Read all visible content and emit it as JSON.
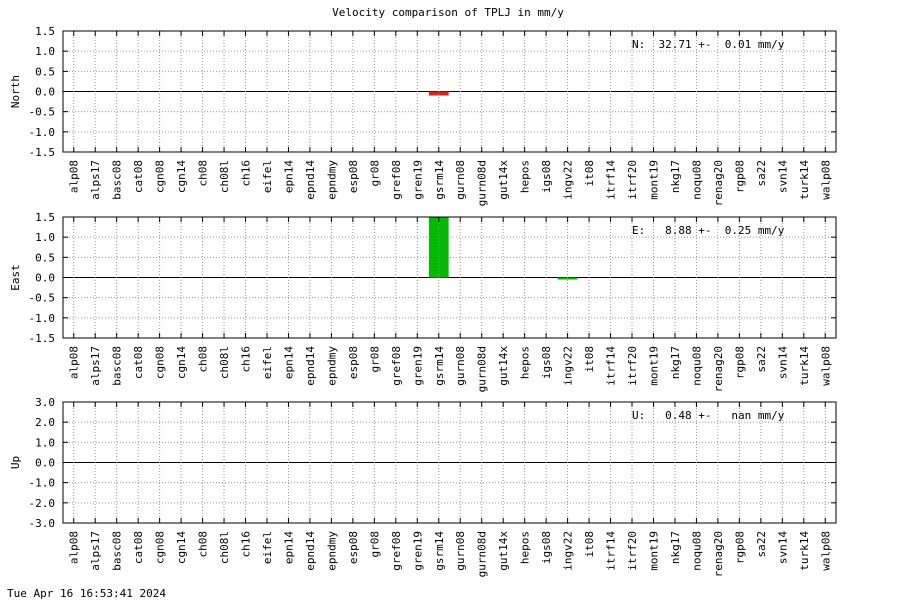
{
  "title": "Velocity comparison of TPLJ in mm/y",
  "chart_data": [
    {
      "type": "bar",
      "ylabel": "North",
      "annotation": "N:  32.71 +-  0.01 mm/y",
      "categories": [
        "alp08",
        "alps17",
        "basc08",
        "cat08",
        "cgn08",
        "cgn14",
        "ch08",
        "ch08l",
        "ch16",
        "eifel",
        "epn14",
        "epnd14",
        "epndmy",
        "esp08",
        "gr08",
        "gref08",
        "gren19",
        "gsrm14",
        "gurn08",
        "gurn08d",
        "gut14x",
        "hepos",
        "igs08",
        "ingv22",
        "it08",
        "itrf14",
        "itrf20",
        "mont19",
        "nkg17",
        "noqu08",
        "renag20",
        "rgp08",
        "sa22",
        "svn14",
        "turk14",
        "walp08"
      ],
      "values": [
        0,
        0,
        0,
        0,
        0,
        0,
        0,
        0,
        0,
        0,
        0,
        0,
        0,
        0,
        0,
        0,
        0,
        -0.1,
        0,
        0,
        0,
        0,
        0,
        0,
        0,
        0,
        0,
        0,
        0,
        0,
        0,
        0,
        0,
        0,
        0,
        0
      ],
      "color": "#dd2222",
      "ylim": [
        -1.5,
        1.5
      ],
      "yticks": [
        -1.5,
        {
          "value": -1,
          "label": "-1.0"
        },
        -0.5,
        {
          "value": 0,
          "label": "0.0"
        },
        0.5,
        {
          "value": 1,
          "label": "1.0"
        },
        1.5
      ],
      "grid": true
    },
    {
      "type": "bar",
      "ylabel": "East",
      "annotation": "E:   8.88 +-  0.25 mm/y",
      "categories": [
        "alp08",
        "alps17",
        "basc08",
        "cat08",
        "cgn08",
        "cgn14",
        "ch08",
        "ch08l",
        "ch16",
        "eifel",
        "epn14",
        "epnd14",
        "epndmy",
        "esp08",
        "gr08",
        "gref08",
        "gren19",
        "gsrm14",
        "gurn08",
        "gurn08d",
        "gut14x",
        "hepos",
        "igs08",
        "ingv22",
        "it08",
        "itrf14",
        "itrf20",
        "mont19",
        "nkg17",
        "noqu08",
        "renag20",
        "rgp08",
        "sa22",
        "svn14",
        "turk14",
        "walp08"
      ],
      "values": [
        0,
        0,
        0,
        0,
        0,
        0,
        0,
        0,
        0,
        0,
        0,
        0,
        0,
        0,
        0,
        0,
        0,
        1.5,
        0,
        0,
        0,
        0,
        0,
        -0.05,
        0,
        0,
        0,
        0,
        0,
        0,
        0,
        0,
        0,
        0,
        0,
        0
      ],
      "color": "#00bb00",
      "ylim": [
        -1.5,
        1.5
      ],
      "yticks": [
        -1.5,
        {
          "value": -1,
          "label": "-1.0"
        },
        -0.5,
        {
          "value": 0,
          "label": "0.0"
        },
        0.5,
        {
          "value": 1,
          "label": "1.0"
        },
        1.5
      ],
      "grid": true
    },
    {
      "type": "bar",
      "ylabel": "Up",
      "annotation": "U:   0.48 +-   nan mm/y",
      "categories": [
        "alp08",
        "alps17",
        "basc08",
        "cat08",
        "cgn08",
        "cgn14",
        "ch08",
        "ch08l",
        "ch16",
        "eifel",
        "epn14",
        "epnd14",
        "epndmy",
        "esp08",
        "gr08",
        "gref08",
        "gren19",
        "gsrm14",
        "gurn08",
        "gurn08d",
        "gut14x",
        "hepos",
        "igs08",
        "ingv22",
        "it08",
        "itrf14",
        "itrf20",
        "mont19",
        "nkg17",
        "noqu08",
        "renag20",
        "rgp08",
        "sa22",
        "svn14",
        "turk14",
        "walp08"
      ],
      "values": [
        0,
        0,
        0,
        0,
        0,
        0,
        0,
        0,
        0,
        0,
        0,
        0,
        0,
        0,
        0,
        0,
        0,
        0,
        0,
        0,
        0,
        0,
        0,
        0,
        0,
        0,
        0,
        0,
        0,
        0,
        0,
        0,
        0,
        0,
        0,
        0
      ],
      "color": "#2222dd",
      "ylim": [
        -3,
        3
      ],
      "yticks": [
        {
          "value": -3,
          "label": "-3.0"
        },
        {
          "value": -2,
          "label": "-2.0"
        },
        {
          "value": -1,
          "label": "-1.0"
        },
        {
          "value": 0,
          "label": "0.0"
        },
        {
          "value": 1,
          "label": "1.0"
        },
        {
          "value": 2,
          "label": "2.0"
        },
        {
          "value": 3,
          "label": "3.0"
        }
      ],
      "grid": true
    }
  ],
  "timestamp": "Tue Apr 16 16:53:41 2024"
}
